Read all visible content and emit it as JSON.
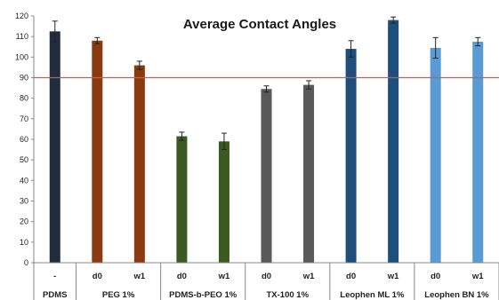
{
  "chart_data": {
    "type": "bar",
    "title": "Average Contact Angles",
    "xlabel": "",
    "ylabel": "",
    "ylim": [
      0,
      120
    ],
    "yticks": [
      0,
      10,
      20,
      30,
      40,
      50,
      60,
      70,
      80,
      90,
      100,
      110,
      120
    ],
    "reference_line": {
      "y": 90,
      "color": "#e05050"
    },
    "grid": false,
    "legend": "none",
    "bars": [
      {
        "group": "PDMS",
        "label": "-",
        "value": 112.5,
        "error": 5,
        "color": "#1f2d3d"
      },
      {
        "group": "PEG 1%",
        "label": "d0",
        "value": 108,
        "error": 1.5,
        "color": "#8b3a0f"
      },
      {
        "group": "PEG 1%",
        "label": "w1",
        "value": 96,
        "error": 2,
        "color": "#8b3a0f"
      },
      {
        "group": "PDMS-b-PEO 1%",
        "label": "d0",
        "value": 61.5,
        "error": 2,
        "color": "#3b5a22"
      },
      {
        "group": "PDMS-b-PEO 1%",
        "label": "w1",
        "value": 59,
        "error": 4,
        "color": "#3b5a22"
      },
      {
        "group": "TX-100 1%",
        "label": "d0",
        "value": 84.5,
        "error": 1.5,
        "color": "#595959"
      },
      {
        "group": "TX-100 1%",
        "label": "w1",
        "value": 86.5,
        "error": 2,
        "color": "#595959"
      },
      {
        "group": "Leophen ML 1%",
        "label": "d0",
        "value": 104,
        "error": 4,
        "color": "#1f4e7a"
      },
      {
        "group": "Leophen ML 1%",
        "label": "w1",
        "value": 118,
        "error": 1.5,
        "color": "#1f4e7a"
      },
      {
        "group": "Leophen BN 1%",
        "label": "d0",
        "value": 104.5,
        "error": 5,
        "color": "#5b9bd5"
      },
      {
        "group": "Leophen BN 1%",
        "label": "w1",
        "value": 107.5,
        "error": 2,
        "color": "#5b9bd5"
      }
    ],
    "groups": [
      {
        "name": "PDMS",
        "count": 1
      },
      {
        "name": "PEG 1%",
        "count": 2
      },
      {
        "name": "PDMS-b-PEO 1%",
        "count": 2
      },
      {
        "name": "TX-100 1%",
        "count": 2
      },
      {
        "name": "Leophen ML 1%",
        "count": 2
      },
      {
        "name": "Leophen BN 1%",
        "count": 2
      }
    ]
  }
}
